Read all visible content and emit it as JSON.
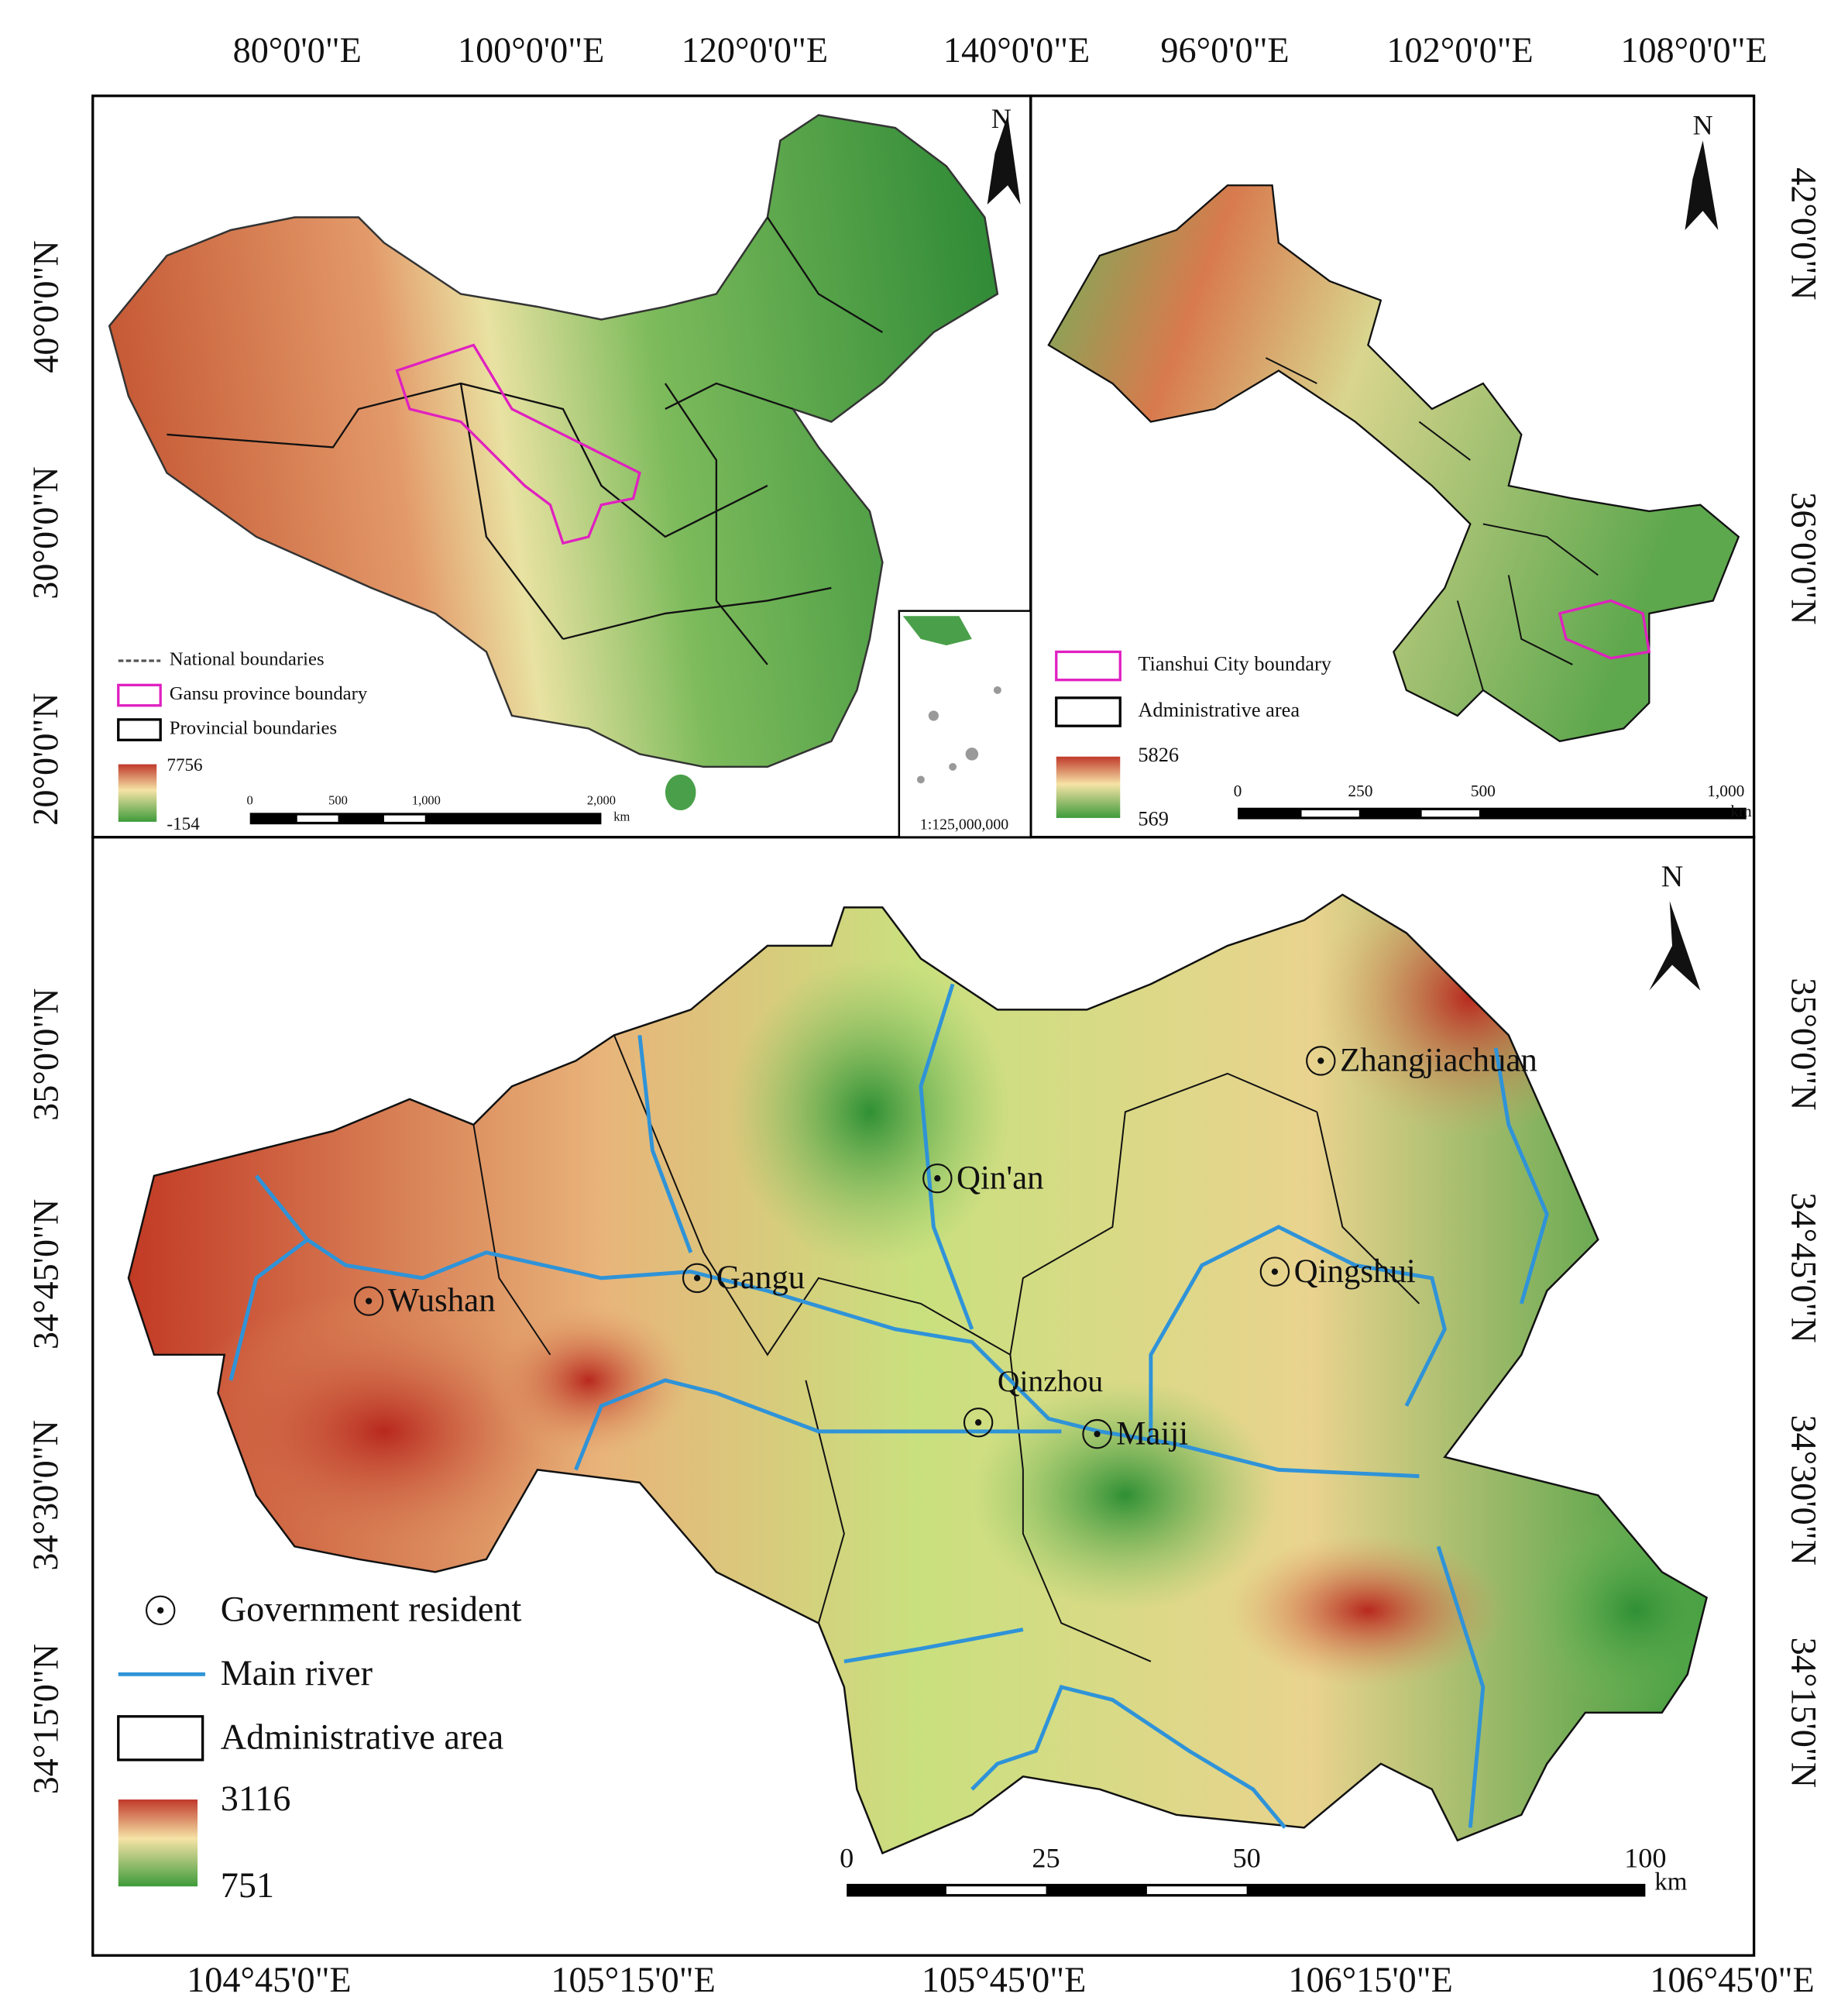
{
  "overview_map": {
    "top_ticks": [
      "80°0'0\"E",
      "100°0'0\"E",
      "120°0'0\"E",
      "140°0'0\"E"
    ],
    "left_ticks": [
      "40°0'0\"N",
      "30°0'0\"N",
      "20°0'0\"N"
    ],
    "north": "N",
    "legend": {
      "items": [
        "National boundaries",
        "Gansu province boundary",
        "Provincial boundaries"
      ],
      "elevation_max": "7756",
      "elevation_min": "-154"
    },
    "scale_bar": {
      "labels": [
        "0",
        "500",
        "1,000",
        "2,000"
      ],
      "unit": "km"
    },
    "inset_scale": "1:125,000,000"
  },
  "gansu_map": {
    "top_ticks": [
      "96°0'0\"E",
      "102°0'0\"E",
      "108°0'0\"E"
    ],
    "right_ticks": [
      "42°0'0\"N",
      "36°0'0\"N"
    ],
    "north": "N",
    "legend": {
      "items": [
        "Tianshui City boundary",
        "Administrative area"
      ],
      "elevation_max": "5826",
      "elevation_min": "569"
    },
    "scale_bar": {
      "labels": [
        "0",
        "250",
        "500",
        "1,000"
      ],
      "unit": "km"
    }
  },
  "tianshui_map": {
    "left_ticks": [
      "35°0'0\"N",
      "34°45'0\"N",
      "34°30'0\"N",
      "34°15'0\"N"
    ],
    "right_ticks": [
      "35°0'0\"N",
      "34°45'0\"N",
      "34°30'0\"N",
      "34°15'0\"N"
    ],
    "bottom_ticks": [
      "104°45'0\"E",
      "105°15'0\"E",
      "105°45'0\"E",
      "106°15'0\"E",
      "106°45'0\"E"
    ],
    "north": "N",
    "places": [
      "Zhangjiachuan",
      "Qin'an",
      "Qingshui",
      "Gangu",
      "Wushan",
      "Qinzhou",
      "Maiji"
    ],
    "legend": {
      "items": [
        "Government resident",
        "Main river",
        "Administrative area"
      ],
      "elevation_max": "3116",
      "elevation_min": "751"
    },
    "scale_bar": {
      "labels": [
        "0",
        "25",
        "50",
        "100"
      ],
      "unit": "km"
    }
  }
}
